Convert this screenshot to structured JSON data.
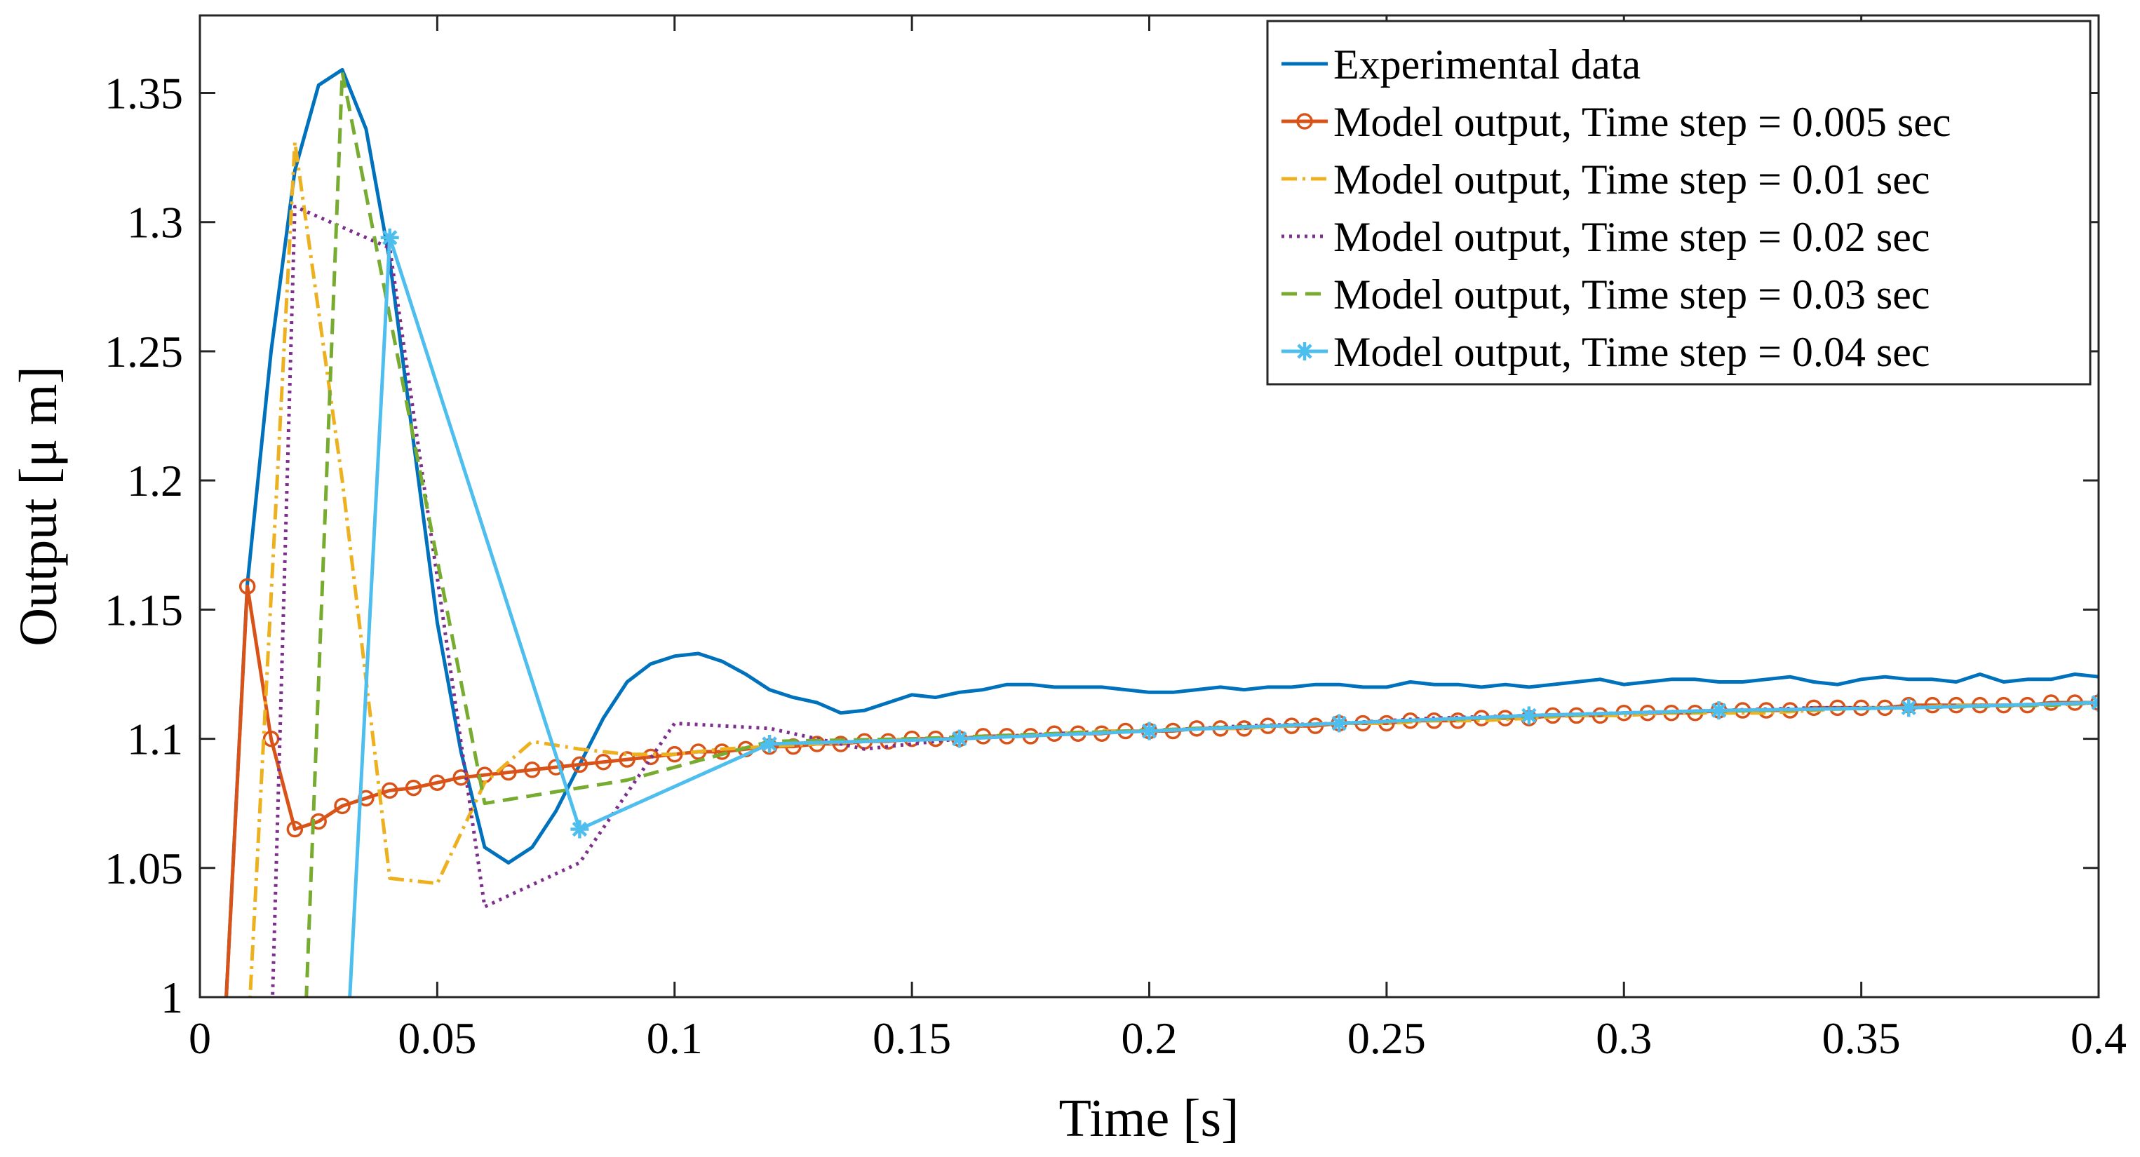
{
  "chart_data": {
    "type": "line",
    "title": "",
    "xlabel": "Time [s]",
    "ylabel": "Output [μ m]",
    "xlim": [
      0,
      0.4
    ],
    "ylim": [
      1,
      1.38
    ],
    "xticks": [
      0,
      0.05,
      0.1,
      0.15,
      0.2,
      0.25,
      0.3,
      0.35,
      0.4
    ],
    "xtick_labels": [
      "0",
      "0.05",
      "0.1",
      "0.15",
      "0.2",
      "0.25",
      "0.3",
      "0.35",
      "0.4"
    ],
    "yticks": [
      1,
      1.05,
      1.1,
      1.15,
      1.2,
      1.25,
      1.3,
      1.35
    ],
    "ytick_labels": [
      "1",
      "1.05",
      "1.1",
      "1.15",
      "1.2",
      "1.25",
      "1.3",
      "1.35"
    ],
    "grid": false,
    "legend_position": "top-right",
    "series": [
      {
        "name": "Experimental data",
        "color": "#0072BD",
        "style": "solid",
        "marker": "none",
        "x": [
          0.005,
          0.01,
          0.015,
          0.02,
          0.025,
          0.03,
          0.035,
          0.04,
          0.045,
          0.05,
          0.055,
          0.06,
          0.065,
          0.07,
          0.075,
          0.08,
          0.085,
          0.09,
          0.095,
          0.1,
          0.105,
          0.11,
          0.115,
          0.12,
          0.125,
          0.13,
          0.135,
          0.14,
          0.145,
          0.15,
          0.155,
          0.16,
          0.165,
          0.17,
          0.175,
          0.18,
          0.185,
          0.19,
          0.195,
          0.2,
          0.205,
          0.21,
          0.215,
          0.22,
          0.225,
          0.23,
          0.235,
          0.24,
          0.245,
          0.25,
          0.255,
          0.26,
          0.265,
          0.27,
          0.275,
          0.28,
          0.285,
          0.29,
          0.295,
          0.3,
          0.305,
          0.31,
          0.315,
          0.32,
          0.325,
          0.33,
          0.335,
          0.34,
          0.345,
          0.35,
          0.355,
          0.36,
          0.365,
          0.37,
          0.375,
          0.38,
          0.385,
          0.39,
          0.395,
          0.4
        ],
        "y": [
          0.98,
          1.16,
          1.25,
          1.32,
          1.353,
          1.359,
          1.336,
          1.285,
          1.215,
          1.145,
          1.095,
          1.058,
          1.052,
          1.058,
          1.072,
          1.09,
          1.108,
          1.122,
          1.129,
          1.132,
          1.133,
          1.13,
          1.125,
          1.119,
          1.116,
          1.114,
          1.11,
          1.111,
          1.114,
          1.117,
          1.116,
          1.118,
          1.119,
          1.121,
          1.121,
          1.12,
          1.12,
          1.12,
          1.119,
          1.118,
          1.118,
          1.119,
          1.12,
          1.119,
          1.12,
          1.12,
          1.121,
          1.121,
          1.12,
          1.12,
          1.122,
          1.121,
          1.121,
          1.12,
          1.121,
          1.12,
          1.121,
          1.122,
          1.123,
          1.121,
          1.122,
          1.123,
          1.123,
          1.122,
          1.122,
          1.123,
          1.124,
          1.122,
          1.121,
          1.123,
          1.124,
          1.123,
          1.123,
          1.122,
          1.125,
          1.122,
          1.123,
          1.123,
          1.125,
          1.124
        ]
      },
      {
        "name": "Model output, Time step = 0.005 sec",
        "color": "#D95319",
        "style": "solid",
        "marker": "circle",
        "x": [
          0.005,
          0.01,
          0.015,
          0.02,
          0.025,
          0.03,
          0.035,
          0.04,
          0.045,
          0.05,
          0.055,
          0.06,
          0.065,
          0.07,
          0.075,
          0.08,
          0.085,
          0.09,
          0.095,
          0.1,
          0.105,
          0.11,
          0.115,
          0.12,
          0.125,
          0.13,
          0.135,
          0.14,
          0.145,
          0.15,
          0.155,
          0.16,
          0.165,
          0.17,
          0.175,
          0.18,
          0.185,
          0.19,
          0.195,
          0.2,
          0.205,
          0.21,
          0.215,
          0.22,
          0.225,
          0.23,
          0.235,
          0.24,
          0.245,
          0.25,
          0.255,
          0.26,
          0.265,
          0.27,
          0.275,
          0.28,
          0.285,
          0.29,
          0.295,
          0.3,
          0.305,
          0.31,
          0.315,
          0.32,
          0.325,
          0.33,
          0.335,
          0.34,
          0.345,
          0.35,
          0.355,
          0.36,
          0.365,
          0.37,
          0.375,
          0.38,
          0.385,
          0.39,
          0.395,
          0.4
        ],
        "y": [
          0.98,
          1.159,
          1.1,
          1.065,
          1.068,
          1.074,
          1.077,
          1.08,
          1.081,
          1.083,
          1.085,
          1.086,
          1.087,
          1.088,
          1.089,
          1.09,
          1.091,
          1.092,
          1.093,
          1.094,
          1.095,
          1.095,
          1.096,
          1.097,
          1.097,
          1.098,
          1.098,
          1.099,
          1.099,
          1.1,
          1.1,
          1.1,
          1.101,
          1.101,
          1.101,
          1.102,
          1.102,
          1.102,
          1.103,
          1.103,
          1.103,
          1.104,
          1.104,
          1.104,
          1.105,
          1.105,
          1.105,
          1.106,
          1.106,
          1.106,
          1.107,
          1.107,
          1.107,
          1.108,
          1.108,
          1.108,
          1.109,
          1.109,
          1.109,
          1.11,
          1.11,
          1.11,
          1.11,
          1.111,
          1.111,
          1.111,
          1.111,
          1.112,
          1.112,
          1.112,
          1.112,
          1.113,
          1.113,
          1.113,
          1.113,
          1.113,
          1.113,
          1.114,
          1.114,
          1.114
        ]
      },
      {
        "name": "Model output, Time step = 0.01 sec",
        "color": "#EDB120",
        "style": "dashdot",
        "marker": "none",
        "x": [
          0.01,
          0.02,
          0.03,
          0.04,
          0.05,
          0.06,
          0.07,
          0.08,
          0.09,
          0.1,
          0.11,
          0.12,
          0.13,
          0.14,
          0.15,
          0.16,
          0.17,
          0.18,
          0.19,
          0.2,
          0.21,
          0.22,
          0.23,
          0.24,
          0.25,
          0.26,
          0.27,
          0.28,
          0.29,
          0.3,
          0.31,
          0.32,
          0.33,
          0.34,
          0.35,
          0.36,
          0.37,
          0.38,
          0.39,
          0.4
        ],
        "y": [
          0.98,
          1.331,
          1.2,
          1.046,
          1.044,
          1.083,
          1.099,
          1.096,
          1.094,
          1.094,
          1.096,
          1.097,
          1.098,
          1.099,
          1.1,
          1.1,
          1.101,
          1.102,
          1.103,
          1.103,
          1.104,
          1.104,
          1.105,
          1.106,
          1.106,
          1.107,
          1.107,
          1.108,
          1.109,
          1.109,
          1.11,
          1.11,
          1.11,
          1.111,
          1.112,
          1.112,
          1.113,
          1.113,
          1.113,
          1.114
        ]
      },
      {
        "name": "Model output, Time step = 0.02 sec",
        "color": "#7E2F8E",
        "style": "dotted",
        "marker": "none",
        "x": [
          0.015,
          0.02,
          0.04,
          0.06,
          0.08,
          0.1,
          0.12,
          0.14,
          0.16,
          0.18,
          0.2,
          0.22,
          0.24,
          0.26,
          0.28,
          0.3,
          0.32,
          0.34,
          0.36,
          0.38,
          0.4
        ],
        "y": [
          0.98,
          1.306,
          1.29,
          1.035,
          1.052,
          1.106,
          1.104,
          1.096,
          1.1,
          1.102,
          1.103,
          1.105,
          1.106,
          1.108,
          1.109,
          1.11,
          1.111,
          1.112,
          1.112,
          1.113,
          1.114
        ]
      },
      {
        "name": "Model output, Time step = 0.03 sec",
        "color": "#77AC30",
        "style": "dashed",
        "marker": "none",
        "x": [
          0.022,
          0.03,
          0.06,
          0.09,
          0.12,
          0.15,
          0.18,
          0.21,
          0.24,
          0.27,
          0.3,
          0.33,
          0.36,
          0.39,
          0.4
        ],
        "y": [
          0.98,
          1.358,
          1.075,
          1.084,
          1.099,
          1.1,
          1.102,
          1.104,
          1.106,
          1.108,
          1.11,
          1.111,
          1.112,
          1.113,
          1.114
        ]
      },
      {
        "name": "Model output, Time step = 0.04 sec",
        "color": "#4DBEEE",
        "style": "solid",
        "marker": "asterisk",
        "x": [
          0.031,
          0.04,
          0.08,
          0.12,
          0.16,
          0.2,
          0.24,
          0.28,
          0.32,
          0.36,
          0.4
        ],
        "y": [
          0.98,
          1.294,
          1.065,
          1.098,
          1.1,
          1.103,
          1.106,
          1.109,
          1.111,
          1.112,
          1.114
        ]
      }
    ]
  }
}
